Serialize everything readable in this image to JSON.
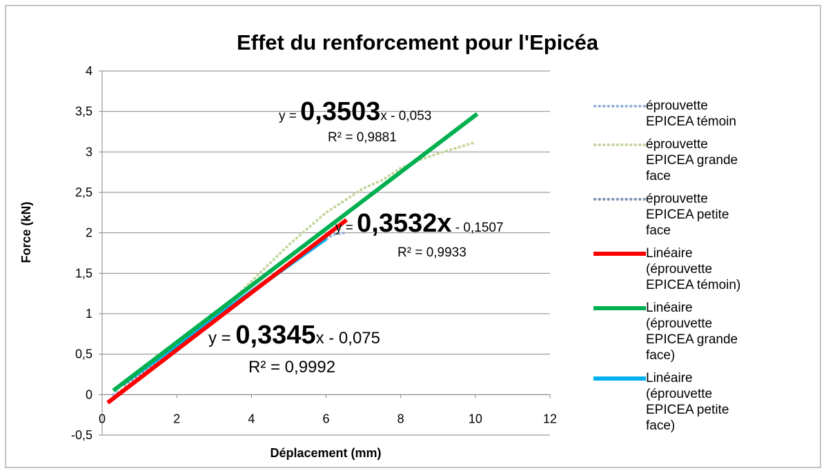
{
  "chart_data": {
    "type": "scatter",
    "title": "Effet du renforcement pour l'Epicéa",
    "xlabel": "Déplacement  (mm)",
    "ylabel": "Force (kN)",
    "xlim": [
      0,
      12
    ],
    "xticks": [
      0,
      2,
      4,
      6,
      8,
      10,
      12
    ],
    "ylim": [
      -0.5,
      4
    ],
    "yticks": [
      {
        "value": -0.5,
        "label": "-0,5"
      },
      0,
      {
        "value": 0.5,
        "label": "0,5"
      },
      1,
      {
        "value": 1.5,
        "label": "1,5"
      },
      2,
      {
        "value": 2.5,
        "label": "2,5"
      },
      3,
      {
        "value": 3.5,
        "label": "3,5"
      },
      4
    ],
    "grid": true,
    "legend": "right",
    "series": [
      {
        "name": "éprouvette EPICEA témoin",
        "color": "#95b3d7",
        "style": "dotted",
        "x": [
          0.3,
          0.8,
          1.5,
          2.5,
          3.5,
          4.5,
          5.5,
          6.2,
          6.5
        ],
        "values": [
          0.0,
          0.13,
          0.38,
          0.73,
          1.07,
          1.42,
          1.78,
          1.98,
          2.0
        ]
      },
      {
        "name": "éprouvette EPICEA grande face",
        "color": "#c3d69b",
        "style": "dotted",
        "x": [
          0.5,
          1,
          2,
          3,
          4,
          5,
          6,
          7,
          7.5,
          8,
          8.5,
          9,
          9.5,
          10
        ],
        "values": [
          0.05,
          0.2,
          0.55,
          0.95,
          1.4,
          1.85,
          2.25,
          2.55,
          2.65,
          2.8,
          2.9,
          2.98,
          3.05,
          3.12
        ]
      },
      {
        "name": "éprouvette EPICEA petite face",
        "color": "#8096b4",
        "style": "dotted",
        "x": [
          0.6,
          1,
          2,
          3,
          4,
          5,
          6
        ],
        "values": [
          0.12,
          0.25,
          0.6,
          0.95,
          1.28,
          1.62,
          1.95
        ]
      },
      {
        "name": "Linéaire (éprouvette EPICEA témoin)",
        "color": "#ff0000",
        "style": "solid",
        "x": [
          0.15,
          6.55
        ],
        "values": [
          -0.1,
          2.16
        ]
      },
      {
        "name": "Linéaire (éprouvette EPICEA grande face)",
        "color": "#00b050",
        "style": "solid",
        "x": [
          0.3,
          10.05
        ],
        "values": [
          0.05,
          3.47
        ]
      },
      {
        "name": "Linéaire (éprouvette EPICEA petite face)",
        "color": "#00b0f0",
        "style": "solid",
        "x": [
          0.6,
          6.0
        ],
        "values": [
          0.15,
          1.93
        ]
      }
    ],
    "annotations": [
      {
        "prefix": "y = ",
        "slope": "0,3503",
        "suffix": "x - 0,053",
        "r2": "R² = 0,9881"
      },
      {
        "prefix": "y = ",
        "slope": "0,3532x",
        "suffix": " - 0,1507",
        "r2": "R² = 0,9933"
      },
      {
        "prefix": "y = ",
        "slope": "0,3345",
        "suffix": "x - 0,075",
        "r2": "R² = 0,9992"
      }
    ]
  }
}
